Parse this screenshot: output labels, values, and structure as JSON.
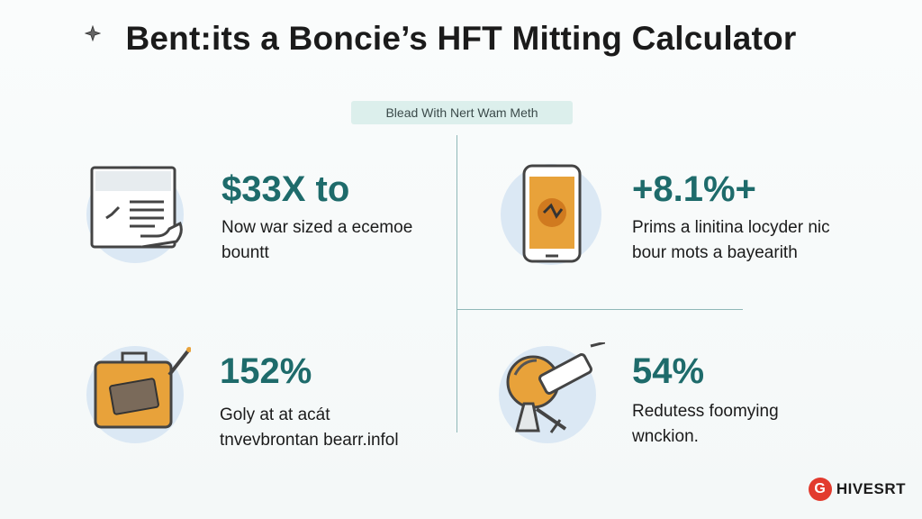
{
  "header": {
    "title": "Bent:its a Boncie’s HFT Mitting Calculator",
    "subtitle": "Blead With Nert Wam Meth"
  },
  "cards": [
    {
      "stat": "$33X to",
      "line1": "Now war sized a ecemoe",
      "line2": "bountt",
      "icon": "document-check-icon"
    },
    {
      "stat": "+8.1%+",
      "line1": "Prims a linitina locyder nic",
      "line2": "bour mots a bayearith",
      "icon": "phone-chart-icon"
    },
    {
      "stat": "152%",
      "line1": "Goly at at acát",
      "line2": "tnvevbrontan bearr.infol",
      "icon": "briefcase-tag-icon"
    },
    {
      "stat": "54%",
      "line1": "Redutess foomying",
      "line2": "wnckion.",
      "icon": "telescope-tool-icon"
    }
  ],
  "brand": {
    "logo_letter": "G",
    "name": "HIVESRT"
  },
  "colors": {
    "accent": "#1e6b6b",
    "orange": "#e8a23a",
    "circle": "#dbe8f4",
    "divider": "#8fb8b8",
    "pill": "#dcefec",
    "brand_red": "#e23b2e"
  }
}
